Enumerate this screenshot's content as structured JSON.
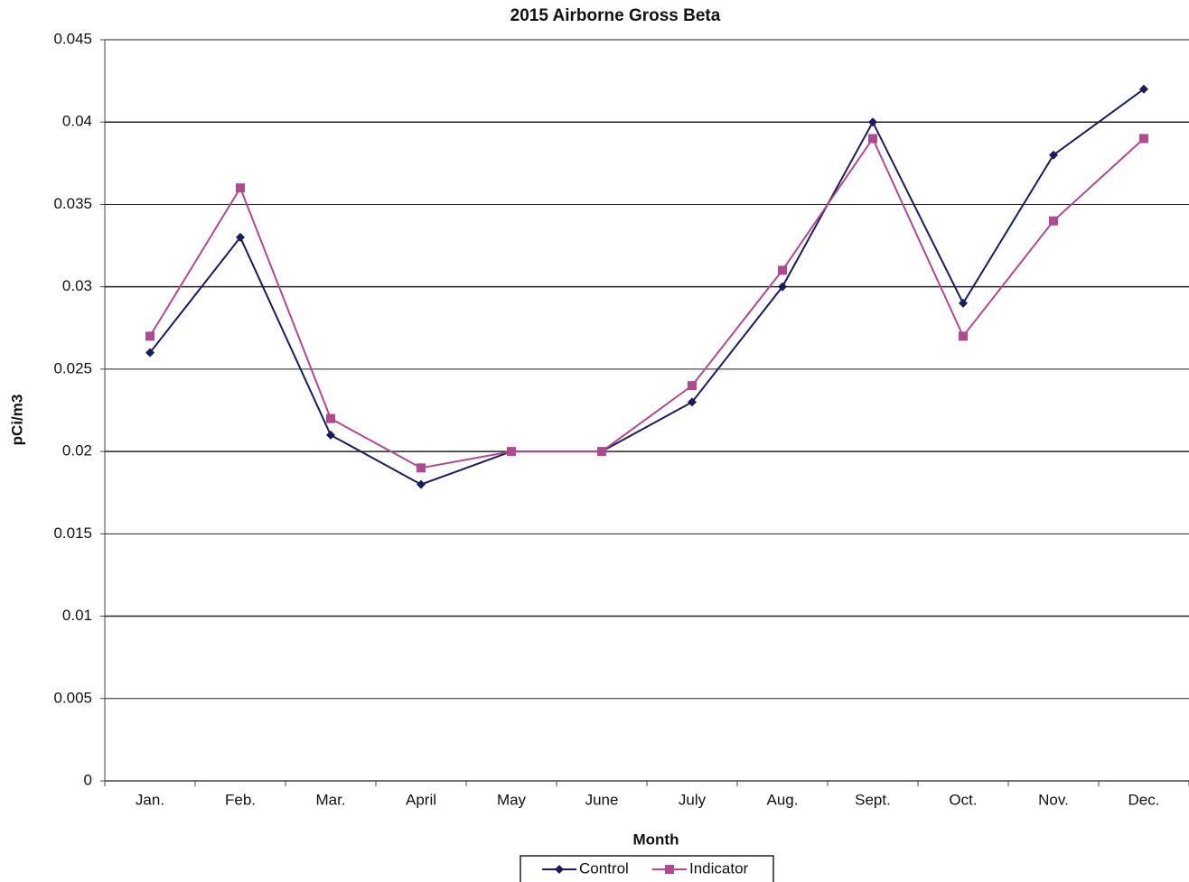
{
  "chart_data": {
    "type": "line",
    "title": "2015 Airborne Gross Beta",
    "x_label": "Month",
    "y_label": "pCi/m3",
    "categories": [
      "Jan.",
      "Feb.",
      "Mar.",
      "April",
      "May",
      "June",
      "July",
      "Aug.",
      "Sept.",
      "Oct.",
      "Nov.",
      "Dec."
    ],
    "series": [
      {
        "name": "Control",
        "color": "#1c1c5c",
        "marker": "diamond",
        "values": [
          0.026,
          0.033,
          0.021,
          0.018,
          0.02,
          0.02,
          0.023,
          0.03,
          0.04,
          0.029,
          0.038,
          0.042
        ]
      },
      {
        "name": "Indicator",
        "color": "#b0498f",
        "marker": "square",
        "values": [
          0.027,
          0.036,
          0.022,
          0.019,
          0.02,
          0.02,
          0.024,
          0.031,
          0.039,
          0.027,
          0.034,
          0.039
        ]
      }
    ],
    "ylim": [
      0,
      0.045
    ],
    "yticks": [
      0,
      0.005,
      0.01,
      0.015,
      0.02,
      0.025,
      0.03,
      0.035,
      0.04,
      0.045
    ],
    "grid": true,
    "legend": "bottom"
  }
}
